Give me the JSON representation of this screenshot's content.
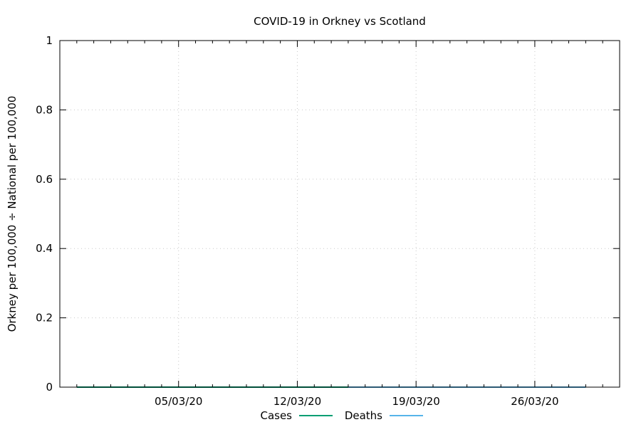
{
  "chart_data": {
    "type": "line",
    "title": "COVID-19 in Orkney vs Scotland",
    "xlabel": "",
    "ylabel": "Orkney per 100,000 ÷ National per 100,000",
    "x_type": "date",
    "xlim": [
      "2020-02-27",
      "2020-03-31"
    ],
    "ylim": [
      0,
      1
    ],
    "x_ticks": [
      {
        "date": "2020-03-05",
        "label": "05/03/20"
      },
      {
        "date": "2020-03-12",
        "label": "12/03/20"
      },
      {
        "date": "2020-03-19",
        "label": "19/03/20"
      },
      {
        "date": "2020-03-26",
        "label": "26/03/20"
      }
    ],
    "y_ticks": [
      {
        "value": 0,
        "label": "0"
      },
      {
        "value": 0.2,
        "label": "0.2"
      },
      {
        "value": 0.4,
        "label": "0.4"
      },
      {
        "value": 0.6,
        "label": "0.6"
      },
      {
        "value": 0.8,
        "label": "0.8"
      },
      {
        "value": 1,
        "label": "1"
      }
    ],
    "grid": true,
    "legend_position": "bottom-center",
    "series": [
      {
        "name": "Cases",
        "color": "#009e73",
        "x": [
          "2020-02-28",
          "2020-03-05",
          "2020-03-12",
          "2020-03-19",
          "2020-03-26",
          "2020-03-29"
        ],
        "values": [
          0,
          0,
          0,
          0,
          0,
          0
        ]
      },
      {
        "name": "Deaths",
        "color": "#56b4e9",
        "x": [
          "2020-03-15",
          "2020-03-19",
          "2020-03-26",
          "2020-03-29"
        ],
        "values": [
          0,
          0,
          0,
          0
        ]
      }
    ]
  }
}
